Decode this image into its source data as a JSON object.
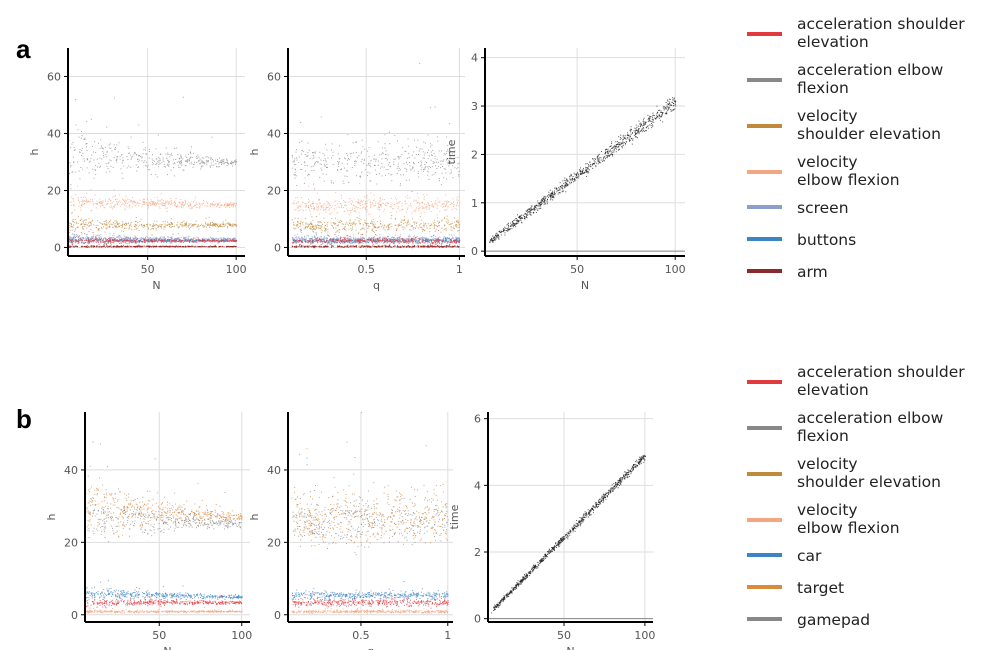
{
  "panel_labels": [
    "a",
    "b"
  ],
  "colors": {
    "acc_shoulder": "#e2393e",
    "acc_elbow": "#888888",
    "vel_shoulder": "#c08a3c",
    "vel_elbow": "#f4a582",
    "screen": "#8d9fc9",
    "buttons": "#3b85c4",
    "arm": "#8b2a2a",
    "car": "#3b85c4",
    "target": "#d98a3a",
    "gamepad": "#888888",
    "time": "#222222"
  },
  "legends": [
    {
      "panel": "a",
      "entries": [
        {
          "lines": [
            "acceleration shoulder",
            "elevation"
          ],
          "color": "#e2393e"
        },
        {
          "lines": [
            "acceleration elbow",
            "flexion"
          ],
          "color": "#888888"
        },
        {
          "lines": [
            "velocity",
            "shoulder elevation"
          ],
          "color": "#c08a3c"
        },
        {
          "lines": [
            "velocity",
            "elbow flexion"
          ],
          "color": "#f4a582"
        },
        {
          "lines": [
            "screen"
          ],
          "color": "#8d9fc9"
        },
        {
          "lines": [
            "buttons"
          ],
          "color": "#3b85c4"
        },
        {
          "lines": [
            "arm"
          ],
          "color": "#8b2a2a"
        }
      ]
    },
    {
      "panel": "b",
      "entries": [
        {
          "lines": [
            "acceleration shoulder",
            "elevation"
          ],
          "color": "#e2393e"
        },
        {
          "lines": [
            "acceleration elbow",
            "flexion"
          ],
          "color": "#888888"
        },
        {
          "lines": [
            "velocity",
            "shoulder elevation"
          ],
          "color": "#c08a3c"
        },
        {
          "lines": [
            "velocity",
            "elbow flexion"
          ],
          "color": "#f4a582"
        },
        {
          "lines": [
            "car"
          ],
          "color": "#3b85c4"
        },
        {
          "lines": [
            "target"
          ],
          "color": "#d98a3a"
        },
        {
          "lines": [
            "gamepad"
          ],
          "color": "#888888"
        }
      ]
    }
  ],
  "chart_data": [
    {
      "id": "a1",
      "panel": "a",
      "type": "scatter",
      "xlabel": "N",
      "ylabel": "h",
      "xlim": [
        5,
        105
      ],
      "ylim": [
        -3,
        70
      ],
      "xticks": [
        50,
        100
      ],
      "xtick_labels": [
        "50",
        "100"
      ],
      "yticks": [
        0,
        20,
        40,
        60
      ],
      "ytick_labels": [
        "0",
        "20",
        "40",
        "60"
      ],
      "x_range": [
        5,
        100
      ],
      "series": [
        {
          "name": "acceleration elbow flexion",
          "color": "#888888",
          "start": 32,
          "end": 30,
          "spread_start": 12,
          "spread_end": 1
        },
        {
          "name": "velocity elbow flexion",
          "color": "#f4a582",
          "start": 16,
          "end": 15,
          "spread_start": 4,
          "spread_end": 0.8
        },
        {
          "name": "velocity shoulder elevation",
          "color": "#c08a3c",
          "start": 8,
          "end": 8,
          "spread_start": 3,
          "spread_end": 0.8
        },
        {
          "name": "screen",
          "color": "#8d9fc9",
          "start": 3.5,
          "end": 3,
          "spread_start": 2,
          "spread_end": 0.4
        },
        {
          "name": "buttons",
          "color": "#3b85c4",
          "start": 2.5,
          "end": 2.5,
          "spread_start": 1,
          "spread_end": 0.3
        },
        {
          "name": "acceleration shoulder elevation",
          "color": "#e2393e",
          "start": 2.5,
          "end": 2.5,
          "spread_start": 1.5,
          "spread_end": 0.4
        },
        {
          "name": "arm",
          "color": "#8b2a2a",
          "start": 0.5,
          "end": 0.5,
          "spread_start": 0.4,
          "spread_end": 0.1
        }
      ]
    },
    {
      "id": "a2",
      "panel": "a",
      "type": "scatter",
      "xlabel": "q",
      "ylabel": "h",
      "xlim": [
        0.08,
        1.03
      ],
      "ylim": [
        -3,
        70
      ],
      "xticks": [
        0.5,
        1
      ],
      "xtick_labels": [
        "0.5",
        "1"
      ],
      "yticks": [
        0,
        20,
        40,
        60
      ],
      "ytick_labels": [
        "0",
        "20",
        "40",
        "60"
      ],
      "x_range": [
        0.1,
        1.0
      ],
      "series": [
        {
          "name": "acceleration elbow flexion",
          "color": "#888888",
          "start": 30,
          "end": 30,
          "spread_start": 7,
          "spread_end": 7
        },
        {
          "name": "velocity elbow flexion",
          "color": "#f4a582",
          "start": 15,
          "end": 15,
          "spread_start": 3,
          "spread_end": 3
        },
        {
          "name": "velocity shoulder elevation",
          "color": "#c08a3c",
          "start": 8,
          "end": 8,
          "spread_start": 2.5,
          "spread_end": 2.5
        },
        {
          "name": "screen",
          "color": "#8d9fc9",
          "start": 3,
          "end": 3,
          "spread_start": 1.2,
          "spread_end": 1.2
        },
        {
          "name": "buttons",
          "color": "#3b85c4",
          "start": 2.5,
          "end": 2.5,
          "spread_start": 0.8,
          "spread_end": 0.8
        },
        {
          "name": "acceleration shoulder elevation",
          "color": "#e2393e",
          "start": 2.5,
          "end": 2.5,
          "spread_start": 1,
          "spread_end": 1
        },
        {
          "name": "arm",
          "color": "#8b2a2a",
          "start": 0.5,
          "end": 0.5,
          "spread_start": 0.3,
          "spread_end": 0.3
        }
      ]
    },
    {
      "id": "a3",
      "panel": "a",
      "type": "scatter",
      "xlabel": "N",
      "ylabel": "time",
      "xlim": [
        3,
        105
      ],
      "ylim": [
        -0.1,
        4.2
      ],
      "xticks": [
        50,
        100
      ],
      "xtick_labels": [
        "50",
        "100"
      ],
      "yticks": [
        0,
        1,
        2,
        3,
        4
      ],
      "ytick_labels": [
        "0",
        "1",
        "2",
        "3",
        "4"
      ],
      "x_range": [
        5,
        100
      ],
      "series": [
        {
          "name": "time",
          "color": "#222222",
          "start": 0.2,
          "end": 3.1,
          "spread_start": 0.05,
          "spread_end": 0.15
        }
      ]
    },
    {
      "id": "b1",
      "panel": "b",
      "type": "scatter",
      "xlabel": "N",
      "ylabel": "h",
      "xlim": [
        5,
        105
      ],
      "ylim": [
        -2,
        56
      ],
      "xticks": [
        50,
        100
      ],
      "xtick_labels": [
        "50",
        "100"
      ],
      "yticks": [
        0,
        20,
        40
      ],
      "ytick_labels": [
        "0",
        "20",
        "40"
      ],
      "x_range": [
        5,
        100
      ],
      "series": [
        {
          "name": "gamepad",
          "color": "#888888",
          "start": 28,
          "end": 25,
          "spread_start": 10,
          "spread_end": 1
        },
        {
          "name": "target",
          "color": "#d98a3a",
          "start": 30,
          "end": 27,
          "spread_start": 9,
          "spread_end": 1
        },
        {
          "name": "car",
          "color": "#3b85c4",
          "start": 6,
          "end": 5,
          "spread_start": 2,
          "spread_end": 0.4
        },
        {
          "name": "acceleration shoulder elevation",
          "color": "#e2393e",
          "start": 3.5,
          "end": 3.5,
          "spread_start": 1.5,
          "spread_end": 0.4
        },
        {
          "name": "velocity elbow flexion",
          "color": "#f4a582",
          "start": 1,
          "end": 1,
          "spread_start": 0.5,
          "spread_end": 0.2
        }
      ]
    },
    {
      "id": "b2",
      "panel": "b",
      "type": "scatter",
      "xlabel": "q",
      "ylabel": "h",
      "xlim": [
        0.08,
        1.03
      ],
      "ylim": [
        -2,
        56
      ],
      "xticks": [
        0.5,
        1
      ],
      "xtick_labels": [
        "0.5",
        "1"
      ],
      "yticks": [
        0,
        20,
        40
      ],
      "ytick_labels": [
        "0",
        "20",
        "40"
      ],
      "x_range": [
        0.1,
        1.0
      ],
      "series": [
        {
          "name": "gamepad",
          "color": "#888888",
          "start": 26,
          "end": 26,
          "spread_start": 7,
          "spread_end": 7
        },
        {
          "name": "target",
          "color": "#d98a3a",
          "start": 27,
          "end": 27,
          "spread_start": 7,
          "spread_end": 7
        },
        {
          "name": "car",
          "color": "#3b85c4",
          "start": 5.5,
          "end": 5.5,
          "spread_start": 1,
          "spread_end": 1
        },
        {
          "name": "acceleration shoulder elevation",
          "color": "#e2393e",
          "start": 3.5,
          "end": 3.5,
          "spread_start": 1,
          "spread_end": 1
        },
        {
          "name": "velocity elbow flexion",
          "color": "#f4a582",
          "start": 1,
          "end": 1,
          "spread_start": 0.4,
          "spread_end": 0.4
        }
      ]
    },
    {
      "id": "b3",
      "panel": "b",
      "type": "scatter",
      "xlabel": "N",
      "ylabel": "time",
      "xlim": [
        3,
        105
      ],
      "ylim": [
        -0.1,
        6.2
      ],
      "xticks": [
        50,
        100
      ],
      "xtick_labels": [
        "50",
        "100"
      ],
      "yticks": [
        0,
        2,
        4,
        6
      ],
      "ytick_labels": [
        "0",
        "2",
        "4",
        "6"
      ],
      "x_range": [
        5,
        100
      ],
      "series": [
        {
          "name": "time",
          "color": "#222222",
          "start": 0.25,
          "end": 4.9,
          "spread_start": 0.05,
          "spread_end": 0.12
        }
      ]
    }
  ]
}
